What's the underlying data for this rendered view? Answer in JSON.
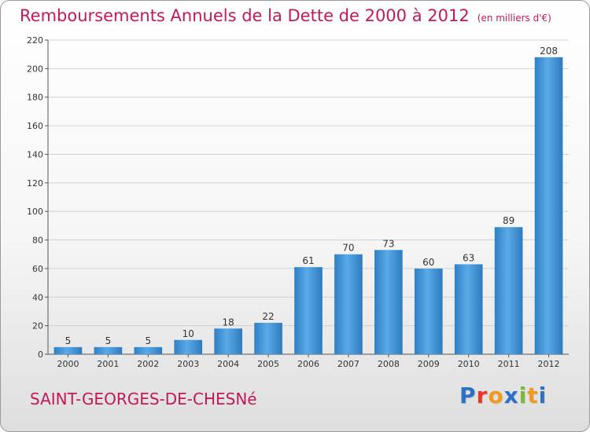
{
  "chart_data": {
    "type": "bar",
    "title": "Remboursements Annuels de la Dette de 2000 à 2012",
    "subtitle": "(en milliers d'€)",
    "categories": [
      "2000",
      "2001",
      "2002",
      "2003",
      "2004",
      "2005",
      "2006",
      "2007",
      "2008",
      "2009",
      "2010",
      "2011",
      "2012"
    ],
    "values": [
      5,
      5,
      5,
      10,
      18,
      22,
      61,
      70,
      73,
      60,
      63,
      89,
      208
    ],
    "ylim": [
      0,
      220
    ],
    "yticks": [
      0,
      20,
      40,
      60,
      80,
      100,
      120,
      140,
      160,
      180,
      200,
      220
    ],
    "grid": true,
    "bar_color": "#3f93d6"
  },
  "footer": {
    "commune": "SAINT-GEORGES-DE-CHESNé",
    "logo_letters": [
      "P",
      "r",
      "o",
      "x",
      "i",
      "t",
      "i"
    ],
    "logo_colors": [
      "#2b72c7",
      "#e8372a",
      "#f29a1f",
      "#2b72c7",
      "#7bb93a",
      "#f29a1f",
      "#2b72c7"
    ]
  }
}
